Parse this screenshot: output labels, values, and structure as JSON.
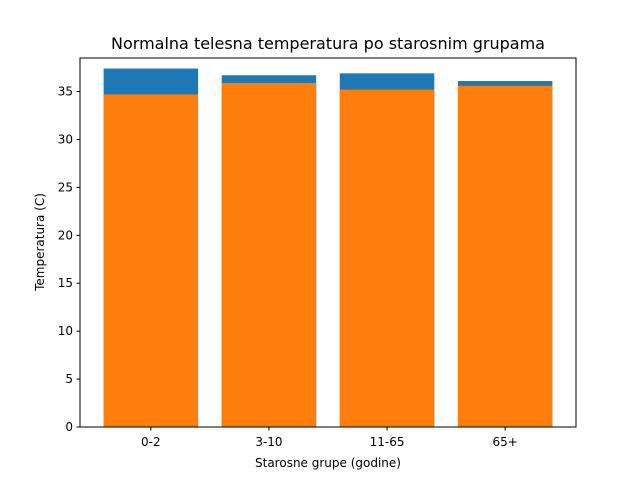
{
  "chart_data": {
    "type": "bar",
    "title": "Normalna telesna temperatura po starosnim grupama",
    "xlabel": "Starosne grupe (godine)",
    "ylabel": "Temperatura (C)",
    "categories": [
      "0-2",
      "3-10",
      "11-65",
      "65+"
    ],
    "series": [
      {
        "values": [
          37.4,
          36.7,
          36.9,
          36.1
        ],
        "color": "#1f77b4"
      },
      {
        "values": [
          34.7,
          35.9,
          35.2,
          35.6
        ],
        "color": "#ff7f0e"
      }
    ],
    "ylim": [
      0,
      38.5
    ],
    "yticks": [
      0,
      5,
      10,
      15,
      20,
      25,
      30,
      35
    ],
    "grid": false,
    "legend": "none"
  }
}
